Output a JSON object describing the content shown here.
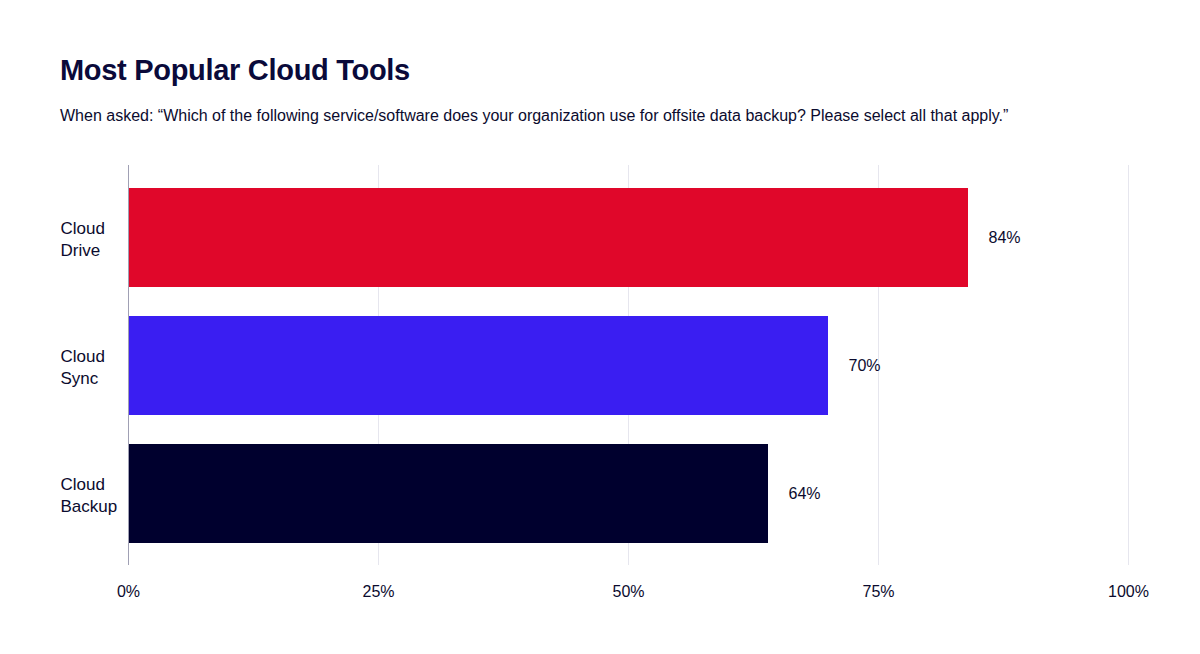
{
  "chart_data": {
    "type": "bar",
    "title": "Most Popular Cloud Tools",
    "subtitle": "When asked: “Which of the following service/software does your organization use for offsite data backup? Please select all that apply.”",
    "categories": [
      "Cloud Drive",
      "Cloud Sync",
      "Cloud Backup"
    ],
    "values": [
      84,
      70,
      64
    ],
    "value_labels": [
      "84%",
      "70%",
      "64%"
    ],
    "colors": [
      "#e0072a",
      "#3a1ef2",
      "#00002e"
    ],
    "orientation": "horizontal",
    "xlim": [
      0,
      100
    ],
    "xticks": [
      {
        "value": 0,
        "label": "0%"
      },
      {
        "value": 25,
        "label": "25%"
      },
      {
        "value": 50,
        "label": "50%"
      },
      {
        "value": 75,
        "label": "75%"
      },
      {
        "value": 100,
        "label": "100%"
      }
    ],
    "grid": true,
    "data_labels": true
  }
}
